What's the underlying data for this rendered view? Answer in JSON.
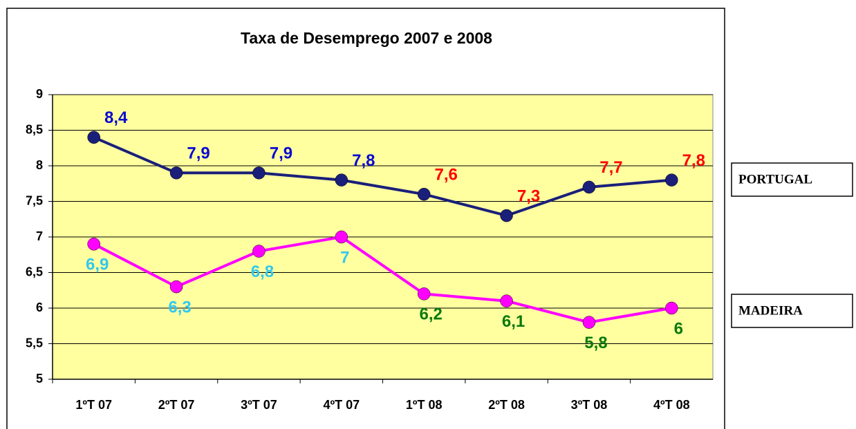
{
  "chart_data": {
    "type": "line",
    "title": "Taxa de Desemprego 2007 e 2008",
    "categories": [
      "1ºT 07",
      "2ºT 07",
      "3ºT 07",
      "4ºT 07",
      "1ºT 08",
      "2ºT 08",
      "3ºT 08",
      "4ºT 08"
    ],
    "series": [
      {
        "name": "PORTUGAL",
        "color": "#1a1f7a",
        "values": [
          8.4,
          7.9,
          7.9,
          7.8,
          7.6,
          7.3,
          7.7,
          7.8
        ],
        "value_labels": [
          "8,4",
          "7,9",
          "7,9",
          "7,8",
          "7,6",
          "7,3",
          "7,7",
          "7,8"
        ],
        "label_colors": [
          "#0a0ad0",
          "#0a0ad0",
          "#0a0ad0",
          "#0a0ad0",
          "#ff0000",
          "#ff0000",
          "#ff0000",
          "#ff0000"
        ]
      },
      {
        "name": "MADEIRA",
        "color": "#ff00ff",
        "values": [
          6.9,
          6.3,
          6.8,
          7,
          6.2,
          6.1,
          5.8,
          6
        ],
        "value_labels": [
          "6,9",
          "6,3",
          "6,8",
          "7",
          "6,2",
          "6,1",
          "5,8",
          "6"
        ],
        "label_colors": [
          "#33c8ee",
          "#33c8ee",
          "#33c8ee",
          "#33c8ee",
          "#0a7a0a",
          "#0a7a0a",
          "#0a7a0a",
          "#0a7a0a"
        ]
      }
    ],
    "ylim": [
      5,
      9
    ],
    "yticks": [
      5,
      {
        "value": 5.5,
        "label": "5,5"
      },
      6,
      {
        "value": 6.5,
        "label": "6,5"
      },
      7,
      {
        "value": 7.5,
        "label": "7,5"
      },
      8,
      {
        "value": 8.5,
        "label": "8,5"
      },
      9
    ],
    "grid": true,
    "plot_background": "#ffffa0"
  }
}
